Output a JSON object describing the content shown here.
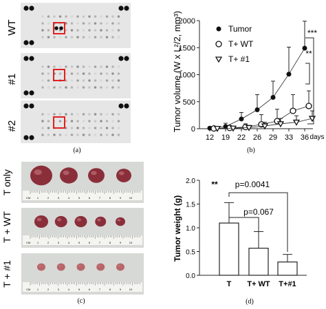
{
  "panels": {
    "a": {
      "caption": "(a)",
      "row_labels": [
        "WT",
        "#1",
        "#2"
      ]
    },
    "b": {
      "caption": "(b)",
      "chart_data": {
        "type": "line",
        "ylabel": "Tumor volume (W x L²/2, mm³)",
        "xlabel": "days",
        "x": [
          12,
          19,
          22,
          26,
          29,
          33,
          36
        ],
        "ylim": [
          0,
          2000
        ],
        "yticks": [
          0,
          500,
          1000,
          1500,
          2000
        ],
        "legend_position": "top-left",
        "series": [
          {
            "name": "Tumor",
            "marker": "filled-circle",
            "values": [
              10,
              40,
              180,
              350,
              580,
              1010,
              1490
            ],
            "errors": [
              20,
              60,
              120,
              280,
              300,
              500,
              500
            ]
          },
          {
            "name": "T+ WT",
            "marker": "open-circle",
            "values": [
              5,
              15,
              30,
              80,
              140,
              330,
              420
            ],
            "errors": [
              10,
              30,
              60,
              180,
              220,
              300,
              280
            ]
          },
          {
            "name": "T+ #1",
            "marker": "open-triangle",
            "values": [
              5,
              10,
              20,
              50,
              90,
              120,
              190
            ],
            "errors": [
              10,
              20,
              40,
              70,
              100,
              120,
              140
            ]
          }
        ],
        "significance": [
          "***",
          "**"
        ]
      }
    },
    "c": {
      "caption": "(c)",
      "row_labels": [
        "T only",
        "T + WT",
        "T + #1"
      ],
      "ruler_ticks": [
        "1",
        "2",
        "3",
        "4",
        "5",
        "6",
        "7",
        "8",
        "9",
        "10",
        "CM"
      ]
    },
    "d": {
      "caption": "(d)",
      "chart_data": {
        "type": "bar",
        "categories": [
          "T",
          "T+ WT",
          "T+#1"
        ],
        "values": [
          1.1,
          0.57,
          0.28
        ],
        "errors": [
          0.43,
          0.35,
          0.16
        ],
        "ylabel": "Tumor weight (g)",
        "ylim": [
          0,
          2.0
        ],
        "yticks": [
          "0.0",
          "0.5",
          "1.0",
          "1.5",
          "2.0"
        ],
        "annotations": [
          "**",
          "p=0.0041",
          "p=0.067"
        ]
      }
    }
  }
}
